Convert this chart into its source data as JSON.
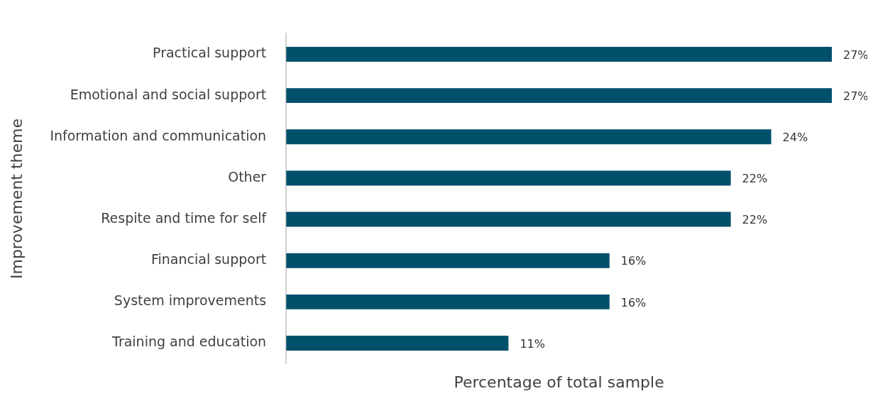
{
  "chart_data": {
    "type": "bar",
    "orientation": "horizontal",
    "xlabel": "Percentage of total sample",
    "ylabel": "Improvement theme",
    "categories": [
      "Practical support",
      "Emotional and social support",
      "Information and communication",
      "Other",
      "Respite and time for self",
      "Financial support",
      "System improvements",
      "Training and education"
    ],
    "values": [
      27,
      27,
      24,
      22,
      22,
      16,
      16,
      11
    ],
    "value_labels": [
      "27%",
      "27%",
      "24%",
      "22%",
      "22%",
      "16%",
      "16%",
      "11%"
    ],
    "color": "#00506b",
    "grid": false,
    "legend": false,
    "tick_labels": "y"
  }
}
